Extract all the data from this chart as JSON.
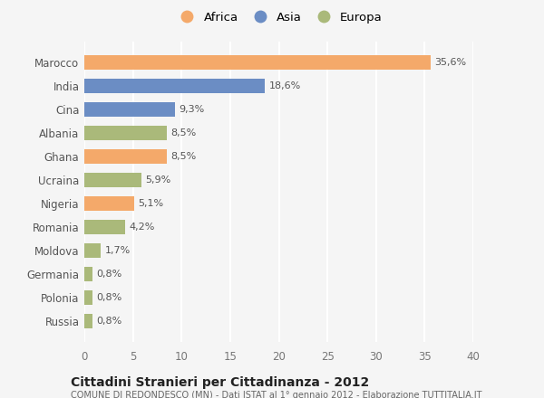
{
  "categories": [
    "Russia",
    "Polonia",
    "Germania",
    "Moldova",
    "Romania",
    "Nigeria",
    "Ucraina",
    "Ghana",
    "Albania",
    "Cina",
    "India",
    "Marocco"
  ],
  "values": [
    0.8,
    0.8,
    0.8,
    1.7,
    4.2,
    5.1,
    5.9,
    8.5,
    8.5,
    9.3,
    18.6,
    35.6
  ],
  "labels": [
    "0,8%",
    "0,8%",
    "0,8%",
    "1,7%",
    "4,2%",
    "5,1%",
    "5,9%",
    "8,5%",
    "8,5%",
    "9,3%",
    "18,6%",
    "35,6%"
  ],
  "colors": [
    "#aab97a",
    "#aab97a",
    "#aab97a",
    "#aab97a",
    "#aab97a",
    "#f4a96a",
    "#aab97a",
    "#f4a96a",
    "#aab97a",
    "#6b8dc4",
    "#6b8dc4",
    "#f4a96a"
  ],
  "legend_labels": [
    "Africa",
    "Asia",
    "Europa"
  ],
  "legend_colors": [
    "#f4a96a",
    "#6b8dc4",
    "#aab97a"
  ],
  "title": "Cittadini Stranieri per Cittadinanza - 2012",
  "subtitle": "COMUNE DI REDONDESCO (MN) - Dati ISTAT al 1° gennaio 2012 - Elaborazione TUTTITALIA.IT",
  "xlim": [
    0,
    40
  ],
  "xticks": [
    0,
    5,
    10,
    15,
    20,
    25,
    30,
    35,
    40
  ],
  "background_color": "#f5f5f5",
  "plot_bg_color": "#f5f5f5",
  "grid_color": "#ffffff",
  "bar_height": 0.62,
  "label_fontsize": 8,
  "ytick_fontsize": 8.5,
  "xtick_fontsize": 8.5
}
